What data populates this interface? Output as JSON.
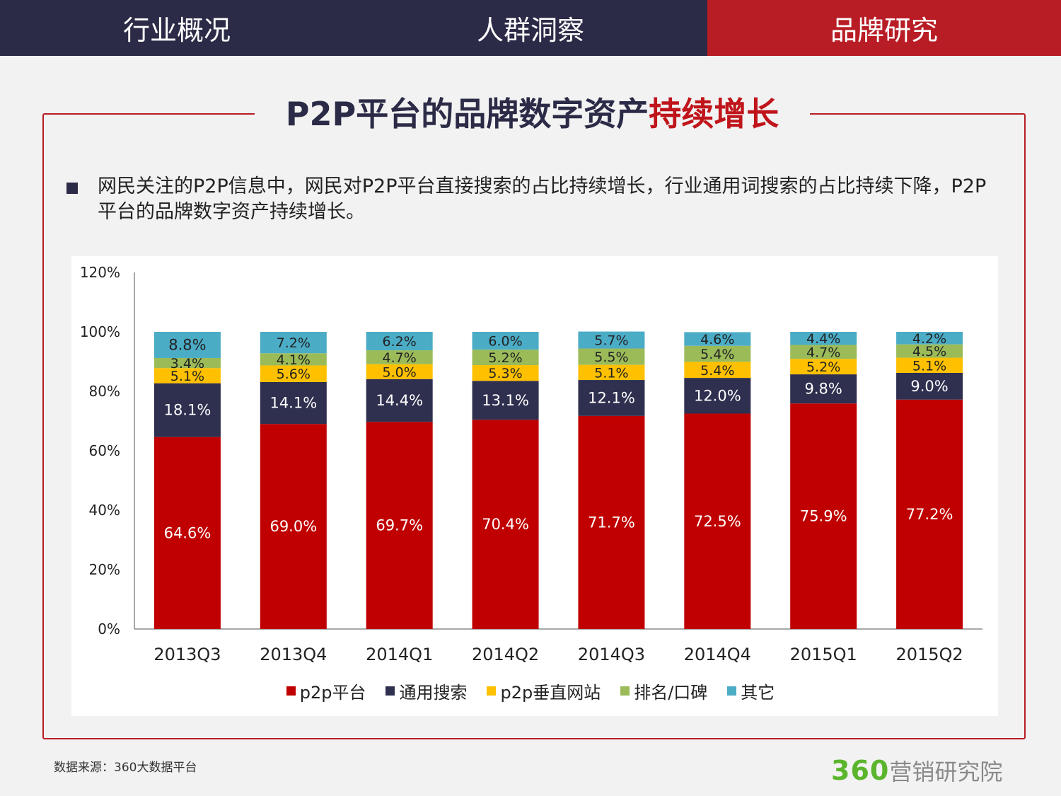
{
  "nav": {
    "tabs": [
      {
        "label": "行业概况",
        "active": false
      },
      {
        "label": "人群洞察",
        "active": false
      },
      {
        "label": "品牌研究",
        "active": true
      }
    ]
  },
  "title": {
    "main": "P2P平台的品牌数字资产",
    "highlight": "持续增长"
  },
  "bullet": "网民关注的P2P信息中，网民对P2P平台直接搜索的占比持续增长，行业通用词搜索的占比持续下降，P2P平台的品牌数字资产持续增长。",
  "chart_data": {
    "type": "bar",
    "stacked": true,
    "categories": [
      "2013Q3",
      "2013Q4",
      "2014Q1",
      "2014Q2",
      "2014Q3",
      "2014Q4",
      "2015Q1",
      "2015Q2"
    ],
    "ylim": [
      0,
      120
    ],
    "yticks": [
      "0%",
      "20%",
      "40%",
      "60%",
      "80%",
      "100%",
      "120%"
    ],
    "series": [
      {
        "name": "p2p平台",
        "color": "#c00000",
        "label_color": "#ffffff",
        "values": [
          64.6,
          69.0,
          69.7,
          70.4,
          71.7,
          72.5,
          75.9,
          77.2
        ],
        "labels": [
          "64.6%",
          "69.0%",
          "69.7%",
          "70.4%",
          "71.7%",
          "72.5%",
          "75.9%",
          "77.2%"
        ]
      },
      {
        "name": "通用搜索",
        "color": "#2f2f4f",
        "label_color": "#ffffff",
        "values": [
          18.1,
          14.1,
          14.4,
          13.1,
          12.1,
          12.0,
          9.8,
          9.0
        ],
        "labels": [
          "18.1%",
          "14.1%",
          "14.4%",
          "13.1%",
          "12.1%",
          "12.0%",
          "9.8%",
          "9.0%"
        ]
      },
      {
        "name": "p2p垂直网站",
        "color": "#ffc000",
        "label_color": "#222222",
        "values": [
          5.1,
          5.6,
          5.0,
          5.3,
          5.1,
          5.4,
          5.2,
          5.1
        ],
        "labels": [
          "5.1%",
          "5.6%",
          "5.0%",
          "5.3%",
          "5.1%",
          "5.4%",
          "5.2%",
          "5.1%"
        ]
      },
      {
        "name": "排名/口碑",
        "color": "#9bbb59",
        "label_color": "#222222",
        "values": [
          3.4,
          4.1,
          4.7,
          5.2,
          5.5,
          5.4,
          4.7,
          4.5
        ],
        "labels": [
          "3.4%",
          "4.1%",
          "4.7%",
          "5.2%",
          "5.5%",
          "5.4%",
          "4.7%",
          "4.5%"
        ]
      },
      {
        "name": "其它",
        "color": "#4bacc6",
        "label_color": "#222222",
        "values": [
          8.8,
          7.2,
          6.2,
          6.0,
          5.7,
          4.6,
          4.4,
          4.2
        ],
        "labels": [
          "8.8%",
          "7.2%",
          "6.2%",
          "6.0%",
          "5.7%",
          "4.6%",
          "4.4%",
          "4.2%"
        ]
      }
    ]
  },
  "footer": {
    "source": "数据来源：360大数据平台",
    "logo_number": "360",
    "logo_text": "营销研究院"
  }
}
